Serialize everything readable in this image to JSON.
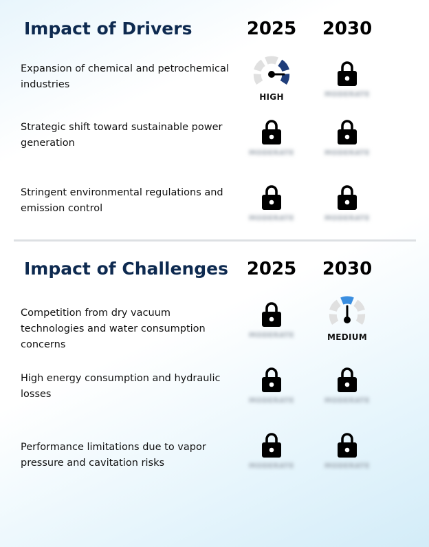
{
  "drivers": {
    "title": "Impact of Drivers",
    "years": [
      "2025",
      "2030"
    ],
    "rows": [
      {
        "label": "Expansion of chemical and petrochemical industries",
        "cells": [
          {
            "type": "gauge",
            "level": "HIGH",
            "label": "HIGH",
            "accent": "#1f3d7a"
          },
          {
            "type": "locked",
            "hidden_label": "MODERATE"
          }
        ]
      },
      {
        "label": "Strategic shift toward sustainable power generation",
        "cells": [
          {
            "type": "locked",
            "hidden_label": "MODERATE"
          },
          {
            "type": "locked",
            "hidden_label": "MODERATE"
          }
        ]
      },
      {
        "label": "Stringent environmental regulations and emission control",
        "cells": [
          {
            "type": "locked",
            "hidden_label": "MODERATE"
          },
          {
            "type": "locked",
            "hidden_label": "MODERATE"
          }
        ]
      }
    ]
  },
  "challenges": {
    "title": "Impact of Challenges",
    "years": [
      "2025",
      "2030"
    ],
    "rows": [
      {
        "label": "Competition from dry vacuum technologies and water consumption concerns",
        "cells": [
          {
            "type": "locked",
            "hidden_label": "MODERATE"
          },
          {
            "type": "gauge",
            "level": "MEDIUM",
            "label": "MEDIUM",
            "accent": "#3a8ee0"
          }
        ]
      },
      {
        "label": "High energy consumption and hydraulic losses",
        "cells": [
          {
            "type": "locked",
            "hidden_label": "MODERATE"
          },
          {
            "type": "locked",
            "hidden_label": "MODERATE"
          }
        ]
      },
      {
        "label": "Performance limitations due to vapor pressure and cavitation risks",
        "cells": [
          {
            "type": "locked",
            "hidden_label": "MODERATE"
          },
          {
            "type": "locked",
            "hidden_label": "MODERATE"
          }
        ]
      }
    ]
  },
  "colors": {
    "title": "#0e2a50",
    "gauge_track": "#e0e0e0",
    "divider": "#dde0e3"
  },
  "icons": {
    "lock": "lock-icon",
    "gauge": "gauge-icon"
  }
}
